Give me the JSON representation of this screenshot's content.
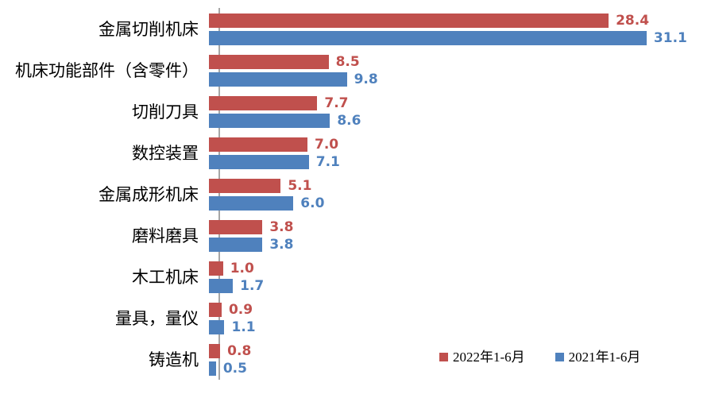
{
  "chart_data": {
    "type": "bar",
    "orientation": "horizontal",
    "title": "",
    "xlabel": "",
    "ylabel": "",
    "categories": [
      "金属切削机床",
      "机床功能部件（含零件）",
      "切削刀具",
      "数控装置",
      "金属成形机床",
      "磨料磨具",
      "木工机床",
      "量具，量仪",
      "铸造机"
    ],
    "series": [
      {
        "name": "2022年1-6月",
        "color": "#c0504d",
        "values": [
          28.4,
          8.5,
          7.7,
          7.0,
          5.1,
          3.8,
          1.0,
          0.9,
          0.8
        ]
      },
      {
        "name": "2021年1-6月",
        "color": "#4f81bd",
        "values": [
          31.1,
          9.8,
          8.6,
          7.1,
          6.0,
          3.8,
          1.7,
          1.1,
          0.5
        ]
      }
    ],
    "value_label_decimals": 1,
    "xlim": [
      0,
      35
    ],
    "grid": false,
    "legend_position": "bottom-right",
    "axis_line_color": "#a6a6a6",
    "background_color": "#ffffff"
  }
}
